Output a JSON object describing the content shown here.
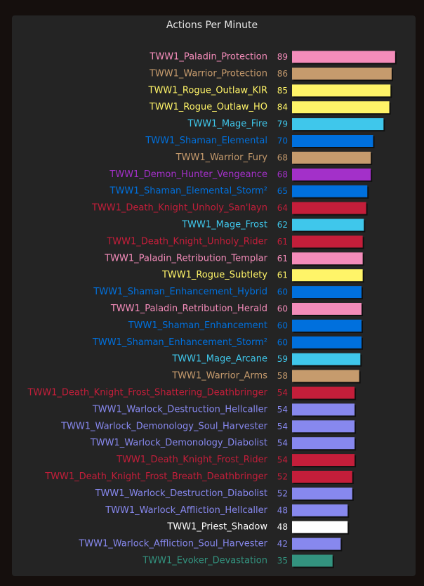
{
  "chart_data": {
    "type": "bar",
    "orientation": "horizontal",
    "title": "Actions Per Minute",
    "xlabel": "",
    "ylabel": "",
    "xlim": [
      0,
      90
    ],
    "grid": false,
    "legend": "none",
    "categories": [
      "TWW1_Paladin_Protection",
      "TWW1_Warrior_Protection",
      "TWW1_Rogue_Outlaw_KIR",
      "TWW1_Rogue_Outlaw_HO",
      "TWW1_Mage_Fire",
      "TWW1_Shaman_Elemental",
      "TWW1_Warrior_Fury",
      "TWW1_Demon_Hunter_Vengeance",
      "TWW1_Shaman_Elemental_Storm²",
      "TWW1_Death_Knight_Unholy_San'layn",
      "TWW1_Mage_Frost",
      "TWW1_Death_Knight_Unholy_Rider",
      "TWW1_Paladin_Retribution_Templar",
      "TWW1_Rogue_Subtlety",
      "TWW1_Shaman_Enhancement_Hybrid",
      "TWW1_Paladin_Retribution_Herald",
      "TWW1_Shaman_Enhancement",
      "TWW1_Shaman_Enhancement_Storm²",
      "TWW1_Mage_Arcane",
      "TWW1_Warrior_Arms",
      "TWW1_Death_Knight_Frost_Shattering_Deathbringer",
      "TWW1_Warlock_Destruction_Hellcaller",
      "TWW1_Warlock_Demonology_Soul_Harvester",
      "TWW1_Warlock_Demonology_Diabolist",
      "TWW1_Death_Knight_Frost_Rider",
      "TWW1_Death_Knight_Frost_Breath_Deathbringer",
      "TWW1_Warlock_Destruction_Diabolist",
      "TWW1_Warlock_Affliction_Hellcaller",
      "TWW1_Priest_Shadow",
      "TWW1_Warlock_Affliction_Soul_Harvester",
      "TWW1_Evoker_Devastation"
    ],
    "values": [
      89,
      86,
      85,
      84,
      79,
      70,
      68,
      68,
      65,
      64,
      62,
      61,
      61,
      61,
      60,
      60,
      60,
      60,
      59,
      58,
      54,
      54,
      54,
      54,
      54,
      52,
      52,
      48,
      48,
      42,
      35
    ],
    "colors": [
      "#f48cba",
      "#c69b6d",
      "#fff468",
      "#fff468",
      "#3fc7eb",
      "#0070dd",
      "#c69b6d",
      "#a330c9",
      "#0070dd",
      "#c41e3a",
      "#3fc7eb",
      "#c41e3a",
      "#f48cba",
      "#fff468",
      "#0070dd",
      "#f48cba",
      "#0070dd",
      "#0070dd",
      "#3fc7eb",
      "#c69b6d",
      "#c41e3a",
      "#8788ee",
      "#8788ee",
      "#8788ee",
      "#c41e3a",
      "#c41e3a",
      "#8788ee",
      "#8788ee",
      "#ffffff",
      "#8788ee",
      "#33937f"
    ]
  },
  "colors": {
    "background": "#150f0d",
    "panel": "#242424",
    "title": "#e6e6e6"
  }
}
